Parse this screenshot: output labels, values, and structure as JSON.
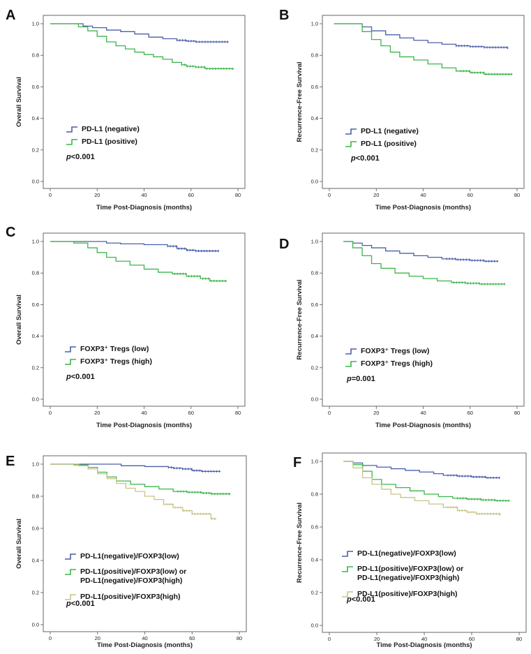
{
  "colors": {
    "blue": "#4a5fa8",
    "green": "#3cb54a",
    "tan": "#c8c487"
  },
  "panels": [
    {
      "label": "A",
      "ylabel": "Overall Survival",
      "xlabel": "Time Post-Diagnosis (months)",
      "yticks": [
        "0.0",
        "0.2",
        "0.4",
        "0.6",
        "0.8",
        "1.0"
      ],
      "xticks": [
        "0",
        "20",
        "40",
        "60",
        "80"
      ],
      "legend": [
        {
          "text": "PD-L1 (negative)",
          "color": "blue"
        },
        {
          "text": "PD-L1 (positive)",
          "color": "green"
        }
      ],
      "pvalue": "<0.001"
    },
    {
      "label": "B",
      "ylabel": "Recurrence-Free Survival",
      "xlabel": "Time Post-Diagnosis (months)",
      "yticks": [
        "0.0",
        "0.2",
        "0.4",
        "0.6",
        "0.8",
        "1.0"
      ],
      "xticks": [
        "0",
        "20",
        "40",
        "60",
        "80"
      ],
      "legend": [
        {
          "text": "PD-L1 (negative)",
          "color": "blue"
        },
        {
          "text": "PD-L1 (positive)",
          "color": "green"
        }
      ],
      "pvalue": "<0.001"
    },
    {
      "label": "C",
      "ylabel": "Overall Survival",
      "xlabel": "Time Post-Diagnosis (months)",
      "yticks": [
        "0.0",
        "0.2",
        "0.4",
        "0.6",
        "0.8",
        "1.0"
      ],
      "xticks": [
        "0",
        "20",
        "40",
        "60",
        "80"
      ],
      "legend": [
        {
          "text": "FOXP3⁺ Tregs (low)",
          "color": "blue"
        },
        {
          "text": "FOXP3⁺ Tregs (high)",
          "color": "green"
        }
      ],
      "pvalue": "<0.001"
    },
    {
      "label": "D",
      "ylabel": "Recurrence-Free Survival",
      "xlabel": "Time Post-Diagnosis (months)",
      "yticks": [
        "0.0",
        "0.2",
        "0.4",
        "0.6",
        "0.8",
        "1.0"
      ],
      "xticks": [
        "0",
        "20",
        "40",
        "60",
        "80"
      ],
      "legend": [
        {
          "text": "FOXP3⁺ Tregs (low)",
          "color": "blue"
        },
        {
          "text": "FOXP3⁺ Tregs (high)",
          "color": "green"
        }
      ],
      "pvalue": "=0.001"
    },
    {
      "label": "E",
      "ylabel": "Overall Survival",
      "xlabel": "Time Post-Diagnosis (months)",
      "yticks": [
        "0.0",
        "0.2",
        "0.4",
        "0.6",
        "0.8",
        "1.0"
      ],
      "xticks": [
        "0",
        "20",
        "40",
        "60",
        "80"
      ],
      "legend": [
        {
          "text": "PD-L1(negative)/FOXP3(low)",
          "color": "blue"
        },
        {
          "text": "PD-L1(positive)/FOXP3(low)  or",
          "text2": "PD-L1(negative)/FOXP3(high)",
          "color": "green"
        },
        {
          "text": "PD-L1(positive)/FOXP3(high)",
          "color": "tan"
        }
      ],
      "pvalue": "<0.001"
    },
    {
      "label": "F",
      "ylabel": "Recurrence-Free Survival",
      "xlabel": "Time Post-Diagnosis (months)",
      "yticks": [
        "0.0",
        "0.2",
        "0.4",
        "0.6",
        "0.8",
        "1.0"
      ],
      "xticks": [
        "0",
        "20",
        "40",
        "60",
        "80"
      ],
      "legend": [
        {
          "text": "PD-L1(negative)/FOXP3(low)",
          "color": "blue"
        },
        {
          "text": "PD-L1(positive)/FOXP3(low)  or",
          "text2": "PD-L1(negative)/FOXP3(high)",
          "color": "green"
        },
        {
          "text": "PD-L1(positive)/FOXP3(high)",
          "color": "tan"
        }
      ],
      "pvalue": "<0.001"
    }
  ],
  "chart_data": [
    {
      "panel": "A",
      "type": "line",
      "title": "",
      "xlabel": "Time Post-Diagnosis (months)",
      "ylabel": "Overall Survival",
      "xlim": [
        0,
        80
      ],
      "ylim": [
        0.0,
        1.0
      ],
      "series": [
        {
          "name": "PD-L1 (negative)",
          "color": "blue",
          "x": [
            0,
            8,
            14,
            18,
            24,
            30,
            36,
            42,
            48,
            54,
            58,
            62,
            76
          ],
          "y": [
            1.0,
            1.0,
            0.985,
            0.975,
            0.96,
            0.95,
            0.935,
            0.915,
            0.905,
            0.895,
            0.89,
            0.885,
            0.885
          ]
        },
        {
          "name": "PD-L1 (positive)",
          "color": "green",
          "x": [
            0,
            8,
            12,
            16,
            20,
            24,
            28,
            32,
            36,
            40,
            44,
            48,
            52,
            56,
            58,
            62,
            66,
            78
          ],
          "y": [
            1.0,
            1.0,
            0.98,
            0.955,
            0.92,
            0.885,
            0.86,
            0.84,
            0.82,
            0.805,
            0.79,
            0.775,
            0.755,
            0.74,
            0.73,
            0.725,
            0.715,
            0.71
          ]
        }
      ]
    },
    {
      "panel": "B",
      "type": "line",
      "title": "",
      "xlabel": "Time Post-Diagnosis (months)",
      "ylabel": "Recurrence-Free Survival",
      "xlim": [
        0,
        80
      ],
      "ylim": [
        0.0,
        1.0
      ],
      "series": [
        {
          "name": "PD-L1 (negative)",
          "color": "blue",
          "x": [
            2,
            10,
            14,
            18,
            24,
            30,
            36,
            42,
            48,
            54,
            60,
            66,
            76
          ],
          "y": [
            1.0,
            1.0,
            0.98,
            0.955,
            0.93,
            0.91,
            0.895,
            0.88,
            0.87,
            0.86,
            0.855,
            0.85,
            0.84
          ]
        },
        {
          "name": "PD-L1 (positive)",
          "color": "green",
          "x": [
            2,
            10,
            14,
            18,
            22,
            26,
            30,
            36,
            42,
            48,
            54,
            60,
            66,
            78
          ],
          "y": [
            1.0,
            1.0,
            0.95,
            0.9,
            0.86,
            0.82,
            0.79,
            0.77,
            0.745,
            0.72,
            0.7,
            0.69,
            0.68,
            0.68
          ]
        }
      ]
    },
    {
      "panel": "C",
      "type": "line",
      "title": "",
      "xlabel": "Time Post-Diagnosis (months)",
      "ylabel": "Overall Survival",
      "xlim": [
        0,
        80
      ],
      "ylim": [
        0.0,
        1.0
      ],
      "series": [
        {
          "name": "FOXP3⁺ Tregs (low)",
          "color": "blue",
          "x": [
            0,
            18,
            24,
            30,
            40,
            50,
            54,
            58,
            62,
            72
          ],
          "y": [
            1.0,
            1.0,
            0.99,
            0.985,
            0.98,
            0.97,
            0.955,
            0.945,
            0.94,
            0.94
          ]
        },
        {
          "name": "FOXP3⁺ Tregs (high)",
          "color": "green",
          "x": [
            0,
            10,
            16,
            20,
            24,
            28,
            34,
            40,
            46,
            52,
            58,
            64,
            68,
            75
          ],
          "y": [
            1.0,
            0.99,
            0.96,
            0.93,
            0.9,
            0.875,
            0.85,
            0.825,
            0.805,
            0.795,
            0.78,
            0.765,
            0.75,
            0.745
          ]
        }
      ]
    },
    {
      "panel": "D",
      "type": "line",
      "title": "",
      "xlabel": "Time Post-Diagnosis (months)",
      "ylabel": "Recurrence-Free Survival",
      "xlim": [
        0,
        80
      ],
      "ylim": [
        0.0,
        1.0
      ],
      "series": [
        {
          "name": "FOXP3⁺ Tregs (low)",
          "color": "blue",
          "x": [
            6,
            10,
            14,
            18,
            24,
            30,
            36,
            42,
            48,
            54,
            60,
            66,
            72
          ],
          "y": [
            1.0,
            0.99,
            0.975,
            0.96,
            0.94,
            0.925,
            0.91,
            0.9,
            0.89,
            0.885,
            0.88,
            0.875,
            0.875
          ]
        },
        {
          "name": "FOXP3⁺ Tregs (high)",
          "color": "green",
          "x": [
            6,
            10,
            14,
            18,
            22,
            28,
            34,
            40,
            46,
            52,
            58,
            64,
            75
          ],
          "y": [
            1.0,
            0.96,
            0.91,
            0.86,
            0.83,
            0.8,
            0.78,
            0.765,
            0.75,
            0.74,
            0.735,
            0.73,
            0.73
          ]
        }
      ]
    },
    {
      "panel": "E",
      "type": "line",
      "title": "",
      "xlabel": "Time Post-Diagnosis (months)",
      "ylabel": "Overall Survival",
      "xlim": [
        0,
        80
      ],
      "ylim": [
        0.0,
        1.0
      ],
      "series": [
        {
          "name": "PD-L1(negative)/FOXP3(low)",
          "color": "blue",
          "x": [
            0,
            20,
            30,
            40,
            50,
            52,
            56,
            60,
            64,
            72
          ],
          "y": [
            1.0,
            1.0,
            0.99,
            0.985,
            0.98,
            0.975,
            0.97,
            0.96,
            0.955,
            0.955
          ]
        },
        {
          "name": "PD-L1(positive)/FOXP3(low) or PD-L1(negative)/FOXP3(high)",
          "color": "green",
          "x": [
            0,
            10,
            16,
            20,
            24,
            28,
            34,
            40,
            46,
            52,
            58,
            64,
            68,
            76
          ],
          "y": [
            1.0,
            0.995,
            0.98,
            0.95,
            0.92,
            0.895,
            0.875,
            0.86,
            0.845,
            0.83,
            0.825,
            0.82,
            0.815,
            0.81
          ]
        },
        {
          "name": "PD-L1(positive)/FOXP3(high)",
          "color": "tan",
          "x": [
            0,
            12,
            16,
            20,
            24,
            28,
            32,
            36,
            40,
            44,
            48,
            52,
            56,
            60,
            64,
            68,
            70
          ],
          "y": [
            1.0,
            0.99,
            0.97,
            0.94,
            0.91,
            0.88,
            0.85,
            0.83,
            0.8,
            0.78,
            0.75,
            0.73,
            0.71,
            0.69,
            0.69,
            0.66,
            0.655
          ]
        }
      ]
    },
    {
      "panel": "F",
      "type": "line",
      "title": "",
      "xlabel": "Time Post-Diagnosis (months)",
      "ylabel": "Recurrence-Free Survival",
      "xlim": [
        0,
        80
      ],
      "ylim": [
        0.0,
        1.0
      ],
      "series": [
        {
          "name": "PD-L1(negative)/FOXP3(low)",
          "color": "blue",
          "x": [
            6,
            10,
            14,
            20,
            26,
            32,
            38,
            44,
            48,
            54,
            60,
            66,
            72
          ],
          "y": [
            1.0,
            0.99,
            0.975,
            0.965,
            0.955,
            0.945,
            0.935,
            0.925,
            0.915,
            0.91,
            0.905,
            0.9,
            0.9
          ]
        },
        {
          "name": "PD-L1(positive)/FOXP3(low) or PD-L1(negative)/FOXP3(high)",
          "color": "green",
          "x": [
            6,
            10,
            14,
            18,
            22,
            28,
            34,
            40,
            46,
            52,
            58,
            64,
            70,
            76
          ],
          "y": [
            1.0,
            0.98,
            0.94,
            0.89,
            0.86,
            0.84,
            0.82,
            0.8,
            0.785,
            0.775,
            0.77,
            0.765,
            0.76,
            0.76
          ]
        },
        {
          "name": "PD-L1(positive)/FOXP3(high)",
          "color": "tan",
          "x": [
            6,
            10,
            14,
            18,
            22,
            26,
            30,
            36,
            42,
            48,
            54,
            58,
            62,
            72
          ],
          "y": [
            1.0,
            0.96,
            0.9,
            0.86,
            0.83,
            0.8,
            0.78,
            0.76,
            0.74,
            0.72,
            0.7,
            0.69,
            0.68,
            0.67
          ]
        }
      ]
    }
  ]
}
